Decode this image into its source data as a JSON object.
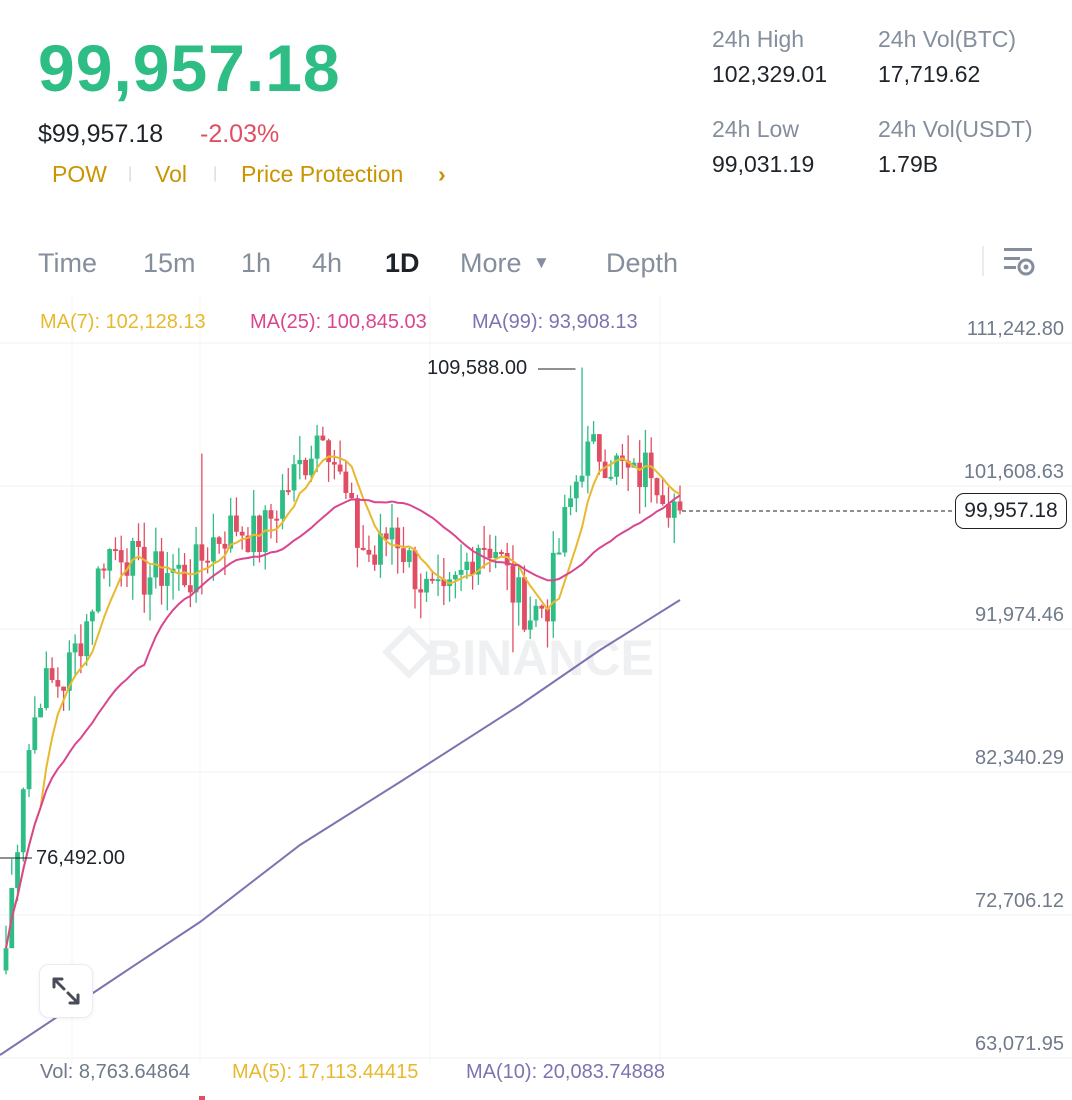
{
  "header": {
    "last_price": "99,957.18",
    "usd_price": "$99,957.18",
    "change_pct": "-2.03%",
    "tags": [
      "POW",
      "Vol",
      "Price Protection"
    ],
    "tag_arrow": "›"
  },
  "stats": {
    "high_label": "24h High",
    "high_value": "102,329.01",
    "low_label": "24h Low",
    "low_value": "99,031.19",
    "vol_btc_label": "24h Vol(BTC)",
    "vol_btc_value": "17,719.62",
    "vol_usdt_label": "24h Vol(USDT)",
    "vol_usdt_value": "1.79B"
  },
  "tabs": [
    {
      "label": "Time",
      "active": false
    },
    {
      "label": "15m",
      "active": false
    },
    {
      "label": "1h",
      "active": false
    },
    {
      "label": "4h",
      "active": false
    },
    {
      "label": "1D",
      "active": true
    },
    {
      "label": "More",
      "active": false
    },
    {
      "label": "Depth",
      "active": false
    }
  ],
  "more_arrow": "▼",
  "ma_legend": {
    "ma7": "MA(7): 102,128.13",
    "ma25": "MA(25): 100,845.03",
    "ma99": "MA(99): 93,908.13"
  },
  "vol_legend": {
    "vol": "Vol: 8,763.64864",
    "ma5": "MA(5): 17,113.44415",
    "ma10": "MA(10): 20,083.74888"
  },
  "y_axis": [
    "111,242.80",
    "101,608.63",
    "91,974.46",
    "82,340.29",
    "72,706.12",
    "63,071.95"
  ],
  "current_price_label": "99,957.18",
  "high_marker": "109,588.00",
  "low_marker": "76,492.00",
  "watermark": "BINANCE",
  "colors": {
    "up": "#2ebd85",
    "down": "#e14e63",
    "ma7": "#e8b92e",
    "ma25": "#d9468f",
    "ma99": "#7d73b0",
    "accent": "#c99400"
  },
  "icons": {
    "expand": "expand-arrows-icon",
    "settings": "chart-settings-icon",
    "more": "caret-down-icon"
  }
}
